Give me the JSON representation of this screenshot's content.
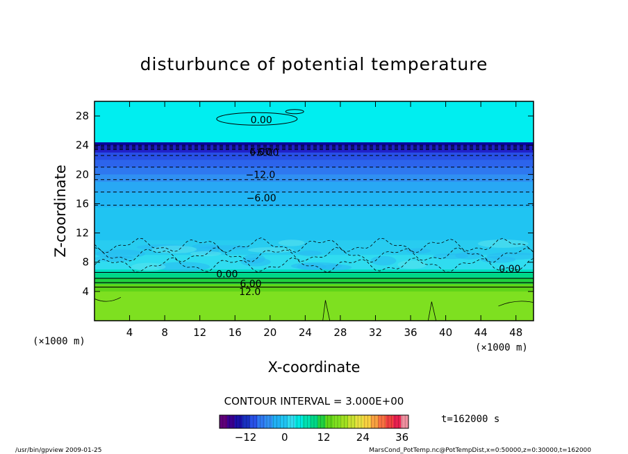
{
  "chart_data": {
    "type": "heatmap",
    "title": "disturbunce of potential temperature",
    "xlabel": "X-coordinate",
    "ylabel": "Z-coordinate",
    "x_unit_left": "(×1000 m)",
    "x_unit_right": "(×1000 m)",
    "xlim": [
      0,
      50
    ],
    "ylim": [
      0,
      30
    ],
    "x_ticks": [
      4,
      8,
      12,
      16,
      20,
      24,
      28,
      32,
      36,
      40,
      44,
      48
    ],
    "y_ticks": [
      4,
      8,
      12,
      16,
      20,
      24,
      28
    ],
    "bands": [
      {
        "z0": 24.4,
        "z1": 30.0,
        "value": 2,
        "color": "#00eef0"
      },
      {
        "z0": 24.0,
        "z1": 24.4,
        "value": -18,
        "color": "#0808a0"
      },
      {
        "z0": 23.0,
        "z1": 24.0,
        "value": -16,
        "color": "#2020c8"
      },
      {
        "z0": 22.0,
        "z1": 23.0,
        "value": -13,
        "color": "#2850e6"
      },
      {
        "z0": 21.0,
        "z1": 22.0,
        "value": -11,
        "color": "#2c64ec"
      },
      {
        "z0": 20.0,
        "z1": 21.0,
        "value": -9,
        "color": "#2e78f0"
      },
      {
        "z0": 19.0,
        "z1": 20.0,
        "value": -8,
        "color": "#3090f2"
      },
      {
        "z0": 17.5,
        "z1": 19.0,
        "value": -6,
        "color": "#28a8f4"
      },
      {
        "z0": 15.5,
        "z1": 17.5,
        "value": -5,
        "color": "#20b6f4"
      },
      {
        "z0": 11.0,
        "z1": 15.5,
        "value": -3,
        "color": "#20c4f2"
      },
      {
        "z0": 9.0,
        "z1": 11.0,
        "value": -2,
        "color": "#28ccf0"
      },
      {
        "z0": 7.0,
        "z1": 9.0,
        "value": -1,
        "color": "#30dcf0"
      },
      {
        "z0": 6.5,
        "z1": 7.0,
        "value": 2,
        "color": "#00e0c0"
      },
      {
        "z0": 5.8,
        "z1": 6.5,
        "value": 5,
        "color": "#00d888"
      },
      {
        "z0": 5.0,
        "z1": 5.8,
        "value": 9,
        "color": "#20d040"
      },
      {
        "z0": 4.0,
        "z1": 5.0,
        "value": 12,
        "color": "#60d418"
      },
      {
        "z0": 0.0,
        "z1": 4.0,
        "value": 15,
        "color": "#7ee020"
      }
    ],
    "contour_lines": [
      {
        "z": 24.0,
        "dashed": true
      },
      {
        "z": 23.8,
        "dashed": true
      },
      {
        "z": 23.6,
        "dashed": true
      },
      {
        "z": 23.4,
        "dashed": true
      },
      {
        "z": 22.6,
        "dashed": true
      },
      {
        "z": 21.0,
        "dashed": true
      },
      {
        "z": 19.3,
        "dashed": true
      },
      {
        "z": 17.6,
        "dashed": true
      },
      {
        "z": 15.8,
        "dashed": true
      },
      {
        "z": 6.6,
        "dashed": false
      },
      {
        "z": 5.8,
        "dashed": false
      },
      {
        "z": 5.2,
        "dashed": false
      },
      {
        "z": 4.6,
        "dashed": false
      }
    ],
    "contour_labels": [
      {
        "x": 19.0,
        "z": 27.5,
        "text": "0.00"
      },
      {
        "x": 18.9,
        "z": 23.1,
        "text": "6.00"
      },
      {
        "x": 19.3,
        "z": 23.0,
        "text": "−6.00"
      },
      {
        "x": 18.9,
        "z": 20.0,
        "text": "−12.0"
      },
      {
        "x": 19.0,
        "z": 16.8,
        "text": "−6.00"
      },
      {
        "x": 15.1,
        "z": 6.4,
        "text": "0.00"
      },
      {
        "x": 17.8,
        "z": 5.1,
        "text": "6.00"
      },
      {
        "x": 17.7,
        "z": 4.0,
        "text": "12.0"
      },
      {
        "x": 47.3,
        "z": 7.1,
        "text": "0.00"
      }
    ],
    "contour_interval_text": "CONTOUR INTERVAL = 3.000E+00",
    "colorbar": {
      "min": -20,
      "max": 38,
      "ticks": [
        -12,
        0,
        12,
        24,
        36
      ],
      "tick_labels": [
        "−12",
        "0",
        "12",
        "24",
        "36"
      ],
      "colors": [
        "#60007a",
        "#3a0090",
        "#1a10a8",
        "#1830c0",
        "#2850e6",
        "#2e78f0",
        "#3090f2",
        "#20b0f4",
        "#20c4f2",
        "#30dcf0",
        "#00e8e0",
        "#00e0b0",
        "#00d888",
        "#20d040",
        "#60d418",
        "#7ee020",
        "#a0e020",
        "#c8e030",
        "#e8e040",
        "#f8d040",
        "#f8a040",
        "#f87040",
        "#f04040",
        "#e82050",
        "#f090a0"
      ]
    },
    "time_text": "t=162000 s",
    "footer_left": "/usr/bin/gpview  2009-01-25",
    "footer_right": "MarsCond_PotTemp.nc@PotTempDist,x=0:50000,z=0:30000,t=162000"
  }
}
